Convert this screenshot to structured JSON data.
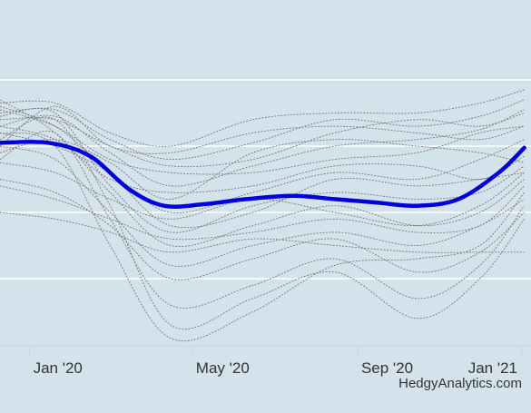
{
  "chart_data": {
    "type": "line",
    "title": "",
    "xlabel": "",
    "ylabel": "",
    "x_axis": {
      "range": [
        "2019-12-10",
        "2021-01-08"
      ],
      "ticks": [
        {
          "date": "2020-01-01",
          "label": "Jan '20"
        },
        {
          "date": "2020-05-01",
          "label": "May '20"
        },
        {
          "date": "2020-09-01",
          "label": "Sep '20"
        },
        {
          "date": "2021-01-01",
          "label": "Jan '21"
        }
      ]
    },
    "y_axis": {
      "range": [
        0,
        100
      ],
      "gridlines": [
        20,
        40,
        60,
        80
      ],
      "tick_labels_visible": false
    },
    "grid": true,
    "legend": "none",
    "highlight": {
      "color": "#0000dd",
      "points": [
        [
          "2019-12-10",
          61
        ],
        [
          "2020-01-15",
          61
        ],
        [
          "2020-02-15",
          57
        ],
        [
          "2020-03-15",
          47
        ],
        [
          "2020-04-10",
          42
        ],
        [
          "2020-05-10",
          42.5
        ],
        [
          "2020-06-10",
          44
        ],
        [
          "2020-07-15",
          45
        ],
        [
          "2020-08-15",
          44
        ],
        [
          "2020-09-15",
          43
        ],
        [
          "2020-10-15",
          42
        ],
        [
          "2020-11-15",
          44
        ],
        [
          "2020-12-15",
          52
        ],
        [
          "2021-01-03",
          59.5
        ]
      ]
    },
    "background_series_color": "#7a7a7a",
    "background_series": [
      [
        [
          "2019-12-10",
          73
        ],
        [
          "2020-01-20",
          73
        ],
        [
          "2020-03-01",
          64
        ],
        [
          "2020-04-15",
          60
        ],
        [
          "2020-06-15",
          68
        ],
        [
          "2020-08-15",
          70
        ],
        [
          "2020-10-15",
          70
        ],
        [
          "2020-12-01",
          73
        ],
        [
          "2021-01-03",
          77
        ]
      ],
      [
        [
          "2019-12-10",
          70
        ],
        [
          "2020-01-20",
          71
        ],
        [
          "2020-03-01",
          62
        ],
        [
          "2020-04-15",
          56
        ],
        [
          "2020-06-15",
          61
        ],
        [
          "2020-08-15",
          68
        ],
        [
          "2020-10-15",
          66
        ],
        [
          "2020-12-01",
          69
        ],
        [
          "2021-01-03",
          74
        ]
      ],
      [
        [
          "2019-12-10",
          66
        ],
        [
          "2020-01-20",
          69
        ],
        [
          "2020-03-01",
          58
        ],
        [
          "2020-04-15",
          48
        ],
        [
          "2020-06-15",
          54
        ],
        [
          "2020-08-15",
          60
        ],
        [
          "2020-10-15",
          62
        ],
        [
          "2020-12-01",
          65
        ],
        [
          "2021-01-03",
          71
        ]
      ],
      [
        [
          "2019-12-10",
          68
        ],
        [
          "2020-01-20",
          68
        ],
        [
          "2020-03-01",
          60
        ],
        [
          "2020-04-15",
          54
        ],
        [
          "2020-06-15",
          56
        ],
        [
          "2020-08-15",
          64
        ],
        [
          "2020-10-15",
          68
        ],
        [
          "2020-12-01",
          66
        ],
        [
          "2021-01-03",
          70
        ]
      ],
      [
        [
          "2019-12-10",
          58
        ],
        [
          "2020-01-20",
          62
        ],
        [
          "2020-03-01",
          55
        ],
        [
          "2020-04-15",
          44
        ],
        [
          "2020-06-15",
          58
        ],
        [
          "2020-08-15",
          62
        ],
        [
          "2020-10-15",
          60
        ],
        [
          "2020-12-01",
          58
        ],
        [
          "2021-01-03",
          55
        ]
      ],
      [
        [
          "2019-12-10",
          72
        ],
        [
          "2020-01-20",
          66
        ],
        [
          "2020-03-01",
          52
        ],
        [
          "2020-04-15",
          36
        ],
        [
          "2020-06-15",
          40
        ],
        [
          "2020-08-15",
          50
        ],
        [
          "2020-10-15",
          48
        ],
        [
          "2020-12-01",
          50
        ],
        [
          "2021-01-03",
          52
        ]
      ],
      [
        [
          "2019-12-10",
          74
        ],
        [
          "2020-01-20",
          64
        ],
        [
          "2020-03-01",
          46
        ],
        [
          "2020-04-15",
          30
        ],
        [
          "2020-06-15",
          36
        ],
        [
          "2020-08-15",
          42
        ],
        [
          "2020-10-15",
          36
        ],
        [
          "2020-12-01",
          40
        ],
        [
          "2021-01-03",
          50
        ]
      ],
      [
        [
          "2019-12-10",
          60
        ],
        [
          "2020-01-20",
          56
        ],
        [
          "2020-03-01",
          40
        ],
        [
          "2020-04-15",
          24
        ],
        [
          "2020-06-15",
          30
        ],
        [
          "2020-08-15",
          34
        ],
        [
          "2020-10-15",
          30
        ],
        [
          "2020-12-01",
          36
        ],
        [
          "2021-01-03",
          44
        ]
      ],
      [
        [
          "2019-12-10",
          50
        ],
        [
          "2020-01-20",
          46
        ],
        [
          "2020-03-01",
          36
        ],
        [
          "2020-04-15",
          20
        ],
        [
          "2020-06-15",
          26
        ],
        [
          "2020-08-15",
          32
        ],
        [
          "2020-10-15",
          22
        ],
        [
          "2020-12-01",
          28
        ],
        [
          "2021-01-03",
          40
        ]
      ],
      [
        [
          "2019-12-10",
          56
        ],
        [
          "2020-01-20",
          64
        ],
        [
          "2020-03-01",
          38
        ],
        [
          "2020-04-15",
          12
        ],
        [
          "2020-06-15",
          18
        ],
        [
          "2020-08-15",
          26
        ],
        [
          "2020-10-15",
          14
        ],
        [
          "2020-12-01",
          24
        ],
        [
          "2021-01-03",
          42
        ]
      ],
      [
        [
          "2019-12-10",
          62
        ],
        [
          "2020-01-20",
          68
        ],
        [
          "2020-03-01",
          42
        ],
        [
          "2020-04-15",
          6
        ],
        [
          "2020-06-15",
          14
        ],
        [
          "2020-08-15",
          22
        ],
        [
          "2020-10-15",
          8
        ],
        [
          "2020-12-01",
          20
        ],
        [
          "2021-01-03",
          38
        ]
      ],
      [
        [
          "2019-12-10",
          64
        ],
        [
          "2020-01-20",
          60
        ],
        [
          "2020-03-01",
          30
        ],
        [
          "2020-04-15",
          2
        ],
        [
          "2020-06-15",
          10
        ],
        [
          "2020-08-15",
          24
        ],
        [
          "2020-10-15",
          26
        ],
        [
          "2020-12-01",
          30
        ],
        [
          "2021-01-03",
          46
        ]
      ],
      [
        [
          "2019-12-10",
          40
        ],
        [
          "2020-01-20",
          38
        ],
        [
          "2020-03-01",
          34
        ],
        [
          "2020-04-15",
          28
        ],
        [
          "2020-06-15",
          32
        ],
        [
          "2020-08-15",
          30
        ],
        [
          "2020-10-15",
          28
        ],
        [
          "2020-12-01",
          28
        ],
        [
          "2021-01-03",
          28
        ]
      ],
      [
        [
          "2019-12-10",
          48
        ],
        [
          "2020-01-20",
          44
        ],
        [
          "2020-03-01",
          38
        ],
        [
          "2020-04-15",
          32
        ],
        [
          "2020-06-15",
          34
        ],
        [
          "2020-08-15",
          38
        ],
        [
          "2020-10-15",
          34
        ],
        [
          "2020-12-01",
          36
        ],
        [
          "2021-01-03",
          48
        ]
      ],
      [
        [
          "2019-12-10",
          71
        ],
        [
          "2020-01-20",
          66
        ],
        [
          "2020-03-01",
          56
        ],
        [
          "2020-04-15",
          52
        ],
        [
          "2020-06-15",
          52
        ],
        [
          "2020-08-15",
          56
        ],
        [
          "2020-10-15",
          58
        ],
        [
          "2020-12-01",
          64
        ],
        [
          "2021-01-03",
          66
        ]
      ],
      [
        [
          "2019-12-10",
          64
        ],
        [
          "2020-01-20",
          60
        ],
        [
          "2020-03-01",
          52
        ],
        [
          "2020-04-15",
          40
        ],
        [
          "2020-06-15",
          46
        ],
        [
          "2020-08-15",
          52
        ],
        [
          "2020-10-15",
          50
        ],
        [
          "2020-12-01",
          56
        ],
        [
          "2021-01-03",
          62
        ]
      ],
      [
        [
          "2019-12-10",
          69
        ],
        [
          "2020-01-20",
          70
        ],
        [
          "2020-03-01",
          48
        ],
        [
          "2020-04-15",
          34
        ],
        [
          "2020-06-15",
          42
        ],
        [
          "2020-08-15",
          46
        ],
        [
          "2020-10-15",
          44
        ],
        [
          "2020-12-01",
          46
        ],
        [
          "2021-01-03",
          54
        ]
      ],
      [
        [
          "2019-12-10",
          55
        ],
        [
          "2020-01-20",
          52
        ],
        [
          "2020-03-01",
          44
        ],
        [
          "2020-04-15",
          38
        ],
        [
          "2020-06-15",
          44
        ],
        [
          "2020-08-15",
          40
        ],
        [
          "2020-10-15",
          36
        ],
        [
          "2020-12-01",
          42
        ],
        [
          "2021-01-03",
          52
        ]
      ],
      [
        [
          "2019-12-10",
          66
        ],
        [
          "2020-01-20",
          62
        ],
        [
          "2020-03-01",
          50
        ],
        [
          "2020-04-15",
          46
        ],
        [
          "2020-06-15",
          48
        ],
        [
          "2020-08-15",
          54
        ],
        [
          "2020-10-15",
          54
        ],
        [
          "2020-12-01",
          50
        ],
        [
          "2021-01-03",
          57
        ]
      ],
      [
        [
          "2019-12-10",
          60
        ],
        [
          "2020-01-20",
          72
        ],
        [
          "2020-03-01",
          60
        ],
        [
          "2020-04-15",
          58
        ],
        [
          "2020-06-15",
          64
        ],
        [
          "2020-08-15",
          66
        ],
        [
          "2020-10-15",
          64
        ],
        [
          "2020-12-01",
          62
        ],
        [
          "2021-01-03",
          66
        ]
      ]
    ]
  },
  "credit": "HedgyAnalytics.com"
}
